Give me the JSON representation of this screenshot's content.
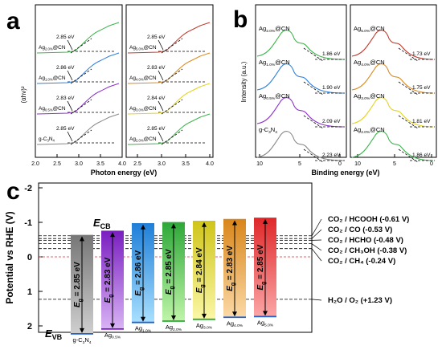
{
  "panel_labels": {
    "a": "a",
    "b": "b",
    "c": "c"
  },
  "panel_a": {
    "x_axis_label": "Photon energy (eV)",
    "y_axis_label": "(αhν)²",
    "left_x_ticks": [
      "2.0",
      "2.5",
      "3.0",
      "3.5",
      "4.0"
    ],
    "right_x_ticks": [
      "2.5",
      "3.0",
      "3.5",
      "4.0"
    ],
    "left_curves": [
      {
        "label": "Ag2.0%@CN",
        "sub": "2.0%",
        "main": "Ag",
        "suffix": "@CN",
        "gap": "2.85 eV",
        "color": "#3cb44b"
      },
      {
        "label": "Ag1.0%@CN",
        "sub": "1.0%",
        "main": "Ag",
        "suffix": "@CN",
        "gap": "2.86 eV",
        "color": "#2f7fd8"
      },
      {
        "label": "Ag0.5%@CN",
        "sub": "0.5%",
        "main": "Ag",
        "suffix": "@CN",
        "gap": "2.83 eV",
        "color": "#8b2fc9"
      },
      {
        "label": "g-C3N4",
        "main": "g-C",
        "sub": "3",
        "mid": "N",
        "sub2": "4",
        "gap": "2.85 eV",
        "color": "#888888"
      }
    ],
    "right_curves": [
      {
        "main": "Ag",
        "sub": "5.0%",
        "suffix": "@CN",
        "gap": "2.85 eV",
        "color": "#c0392b"
      },
      {
        "main": "Ag",
        "sub": "4.0%",
        "suffix": "@CN",
        "gap": "2.83 eV",
        "color": "#d98a1f"
      },
      {
        "main": "Ag",
        "sub": "3.0%",
        "suffix": "@CN",
        "gap": "2.84 eV",
        "color": "#e3d21c"
      },
      {
        "main": "Ag",
        "sub": "2.0%",
        "suffix": "@CN",
        "gap": "2.85 eV",
        "color": "#3cb44b"
      }
    ]
  },
  "panel_b": {
    "x_axis_label": "Binding energy (eV)",
    "y_axis_label": "Intensity (a.u.)",
    "left_x_ticks": [
      "10",
      "5",
      "0"
    ],
    "right_x_ticks": [
      "10",
      "5",
      "0"
    ],
    "left_curves": [
      {
        "main": "Ag",
        "sub": "2.0%",
        "suffix": "@CN",
        "vb": "1.86 eV",
        "color": "#3cb44b"
      },
      {
        "main": "Ag",
        "sub": "1.0%",
        "suffix": "@CN",
        "vb": "1.90 eV",
        "color": "#2f7fd8"
      },
      {
        "main": "Ag",
        "sub": "0.5%",
        "suffix": "@CN",
        "vb": "2.09 eV",
        "color": "#8b2fc9"
      },
      {
        "main": "g-C",
        "sub": "3",
        "mid": "N",
        "sub2": "4",
        "vb": "2.23 eV",
        "color": "#888888"
      }
    ],
    "right_curves": [
      {
        "main": "Ag",
        "sub": "5.0%",
        "suffix": "@CN",
        "vb": "1.73 eV",
        "color": "#c0392b"
      },
      {
        "main": "Ag",
        "sub": "4.0%",
        "suffix": "@CN",
        "vb": "1.75 eV",
        "color": "#d98a1f"
      },
      {
        "main": "Ag",
        "sub": "3.0%",
        "suffix": "@CN",
        "vb": "1.81 eV",
        "color": "#e3d21c"
      },
      {
        "main": "Ag",
        "sub": "2.0%",
        "suffix": "@CN",
        "vb": "1.86 eV",
        "color": "#3cb44b"
      }
    ]
  },
  "panel_c": {
    "y_axis_label": "Potential vs RHE (V)",
    "y_ticks": [
      "-2",
      "-1",
      "0",
      "1",
      "2"
    ],
    "ecb_label": "E",
    "ecb_sub": "CB",
    "evb_label": "E",
    "evb_sub": "VB",
    "eg_symbol": "E",
    "eg_sub": "g",
    "bars": [
      {
        "name_main": "g-C",
        "name_sub": "3",
        "name_mid": "N",
        "name_sub2": "4",
        "eg": "2.85 eV",
        "cb": -0.62,
        "vb": 2.23,
        "color_top": "#777777",
        "color_bot": "#cfcfcf",
        "edge": "#1f5fd0"
      },
      {
        "name_main": "Ag",
        "name_sub": "0.5%",
        "eg": "2.83 eV",
        "cb": -0.74,
        "vb": 2.09,
        "color_top": "#7a1fc0",
        "color_bot": "#d9b3f5",
        "edge": "#7a1fc0"
      },
      {
        "name_main": "Ag",
        "name_sub": "1.0%",
        "eg": "2.86 eV",
        "cb": -0.96,
        "vb": 1.9,
        "color_top": "#1f7fd8",
        "color_bot": "#a9e0ff",
        "edge": "#1f5fd0"
      },
      {
        "name_main": "Ag",
        "name_sub": "2.0%",
        "eg": "2.85 eV",
        "cb": -0.99,
        "vb": 1.86,
        "color_top": "#2ea838",
        "color_bot": "#bff5a9",
        "edge": "#2ea838"
      },
      {
        "name_main": "Ag",
        "name_sub": "3.0%",
        "eg": "2.84 eV",
        "cb": -1.03,
        "vb": 1.81,
        "color_top": "#cfc51a",
        "color_bot": "#fbf7a6",
        "edge": "#2ea838"
      },
      {
        "name_main": "Ag",
        "name_sub": "4.0%",
        "eg": "2.83 eV",
        "cb": -1.08,
        "vb": 1.75,
        "color_top": "#d9861a",
        "color_bot": "#fbd9a6",
        "edge": "#1f5fd0"
      },
      {
        "name_main": "Ag",
        "name_sub": "5.0%",
        "eg": "2.85 eV",
        "cb": -1.12,
        "vb": 1.73,
        "color_top": "#e0282a",
        "color_bot": "#fba6a6",
        "edge": "#1f5fd0"
      }
    ],
    "redox": [
      {
        "text": "CO₂ / HCOOH (-0.61 V)",
        "pot": -0.61
      },
      {
        "text": "CO₂ / CO (-0.53 V)",
        "pot": -0.53
      },
      {
        "text": "CO₂ / HCHO (-0.48 V)",
        "pot": -0.48
      },
      {
        "text": "CO₂ / CH₃OH (-0.38 V)",
        "pot": -0.38
      },
      {
        "text": "CO₂ / CH₄ (-0.24 V)",
        "pot": -0.24
      },
      {
        "text": "H₂O / O₂ (+1.23 V)",
        "pot": 1.23
      }
    ],
    "zero_line_color": "#e03030"
  }
}
